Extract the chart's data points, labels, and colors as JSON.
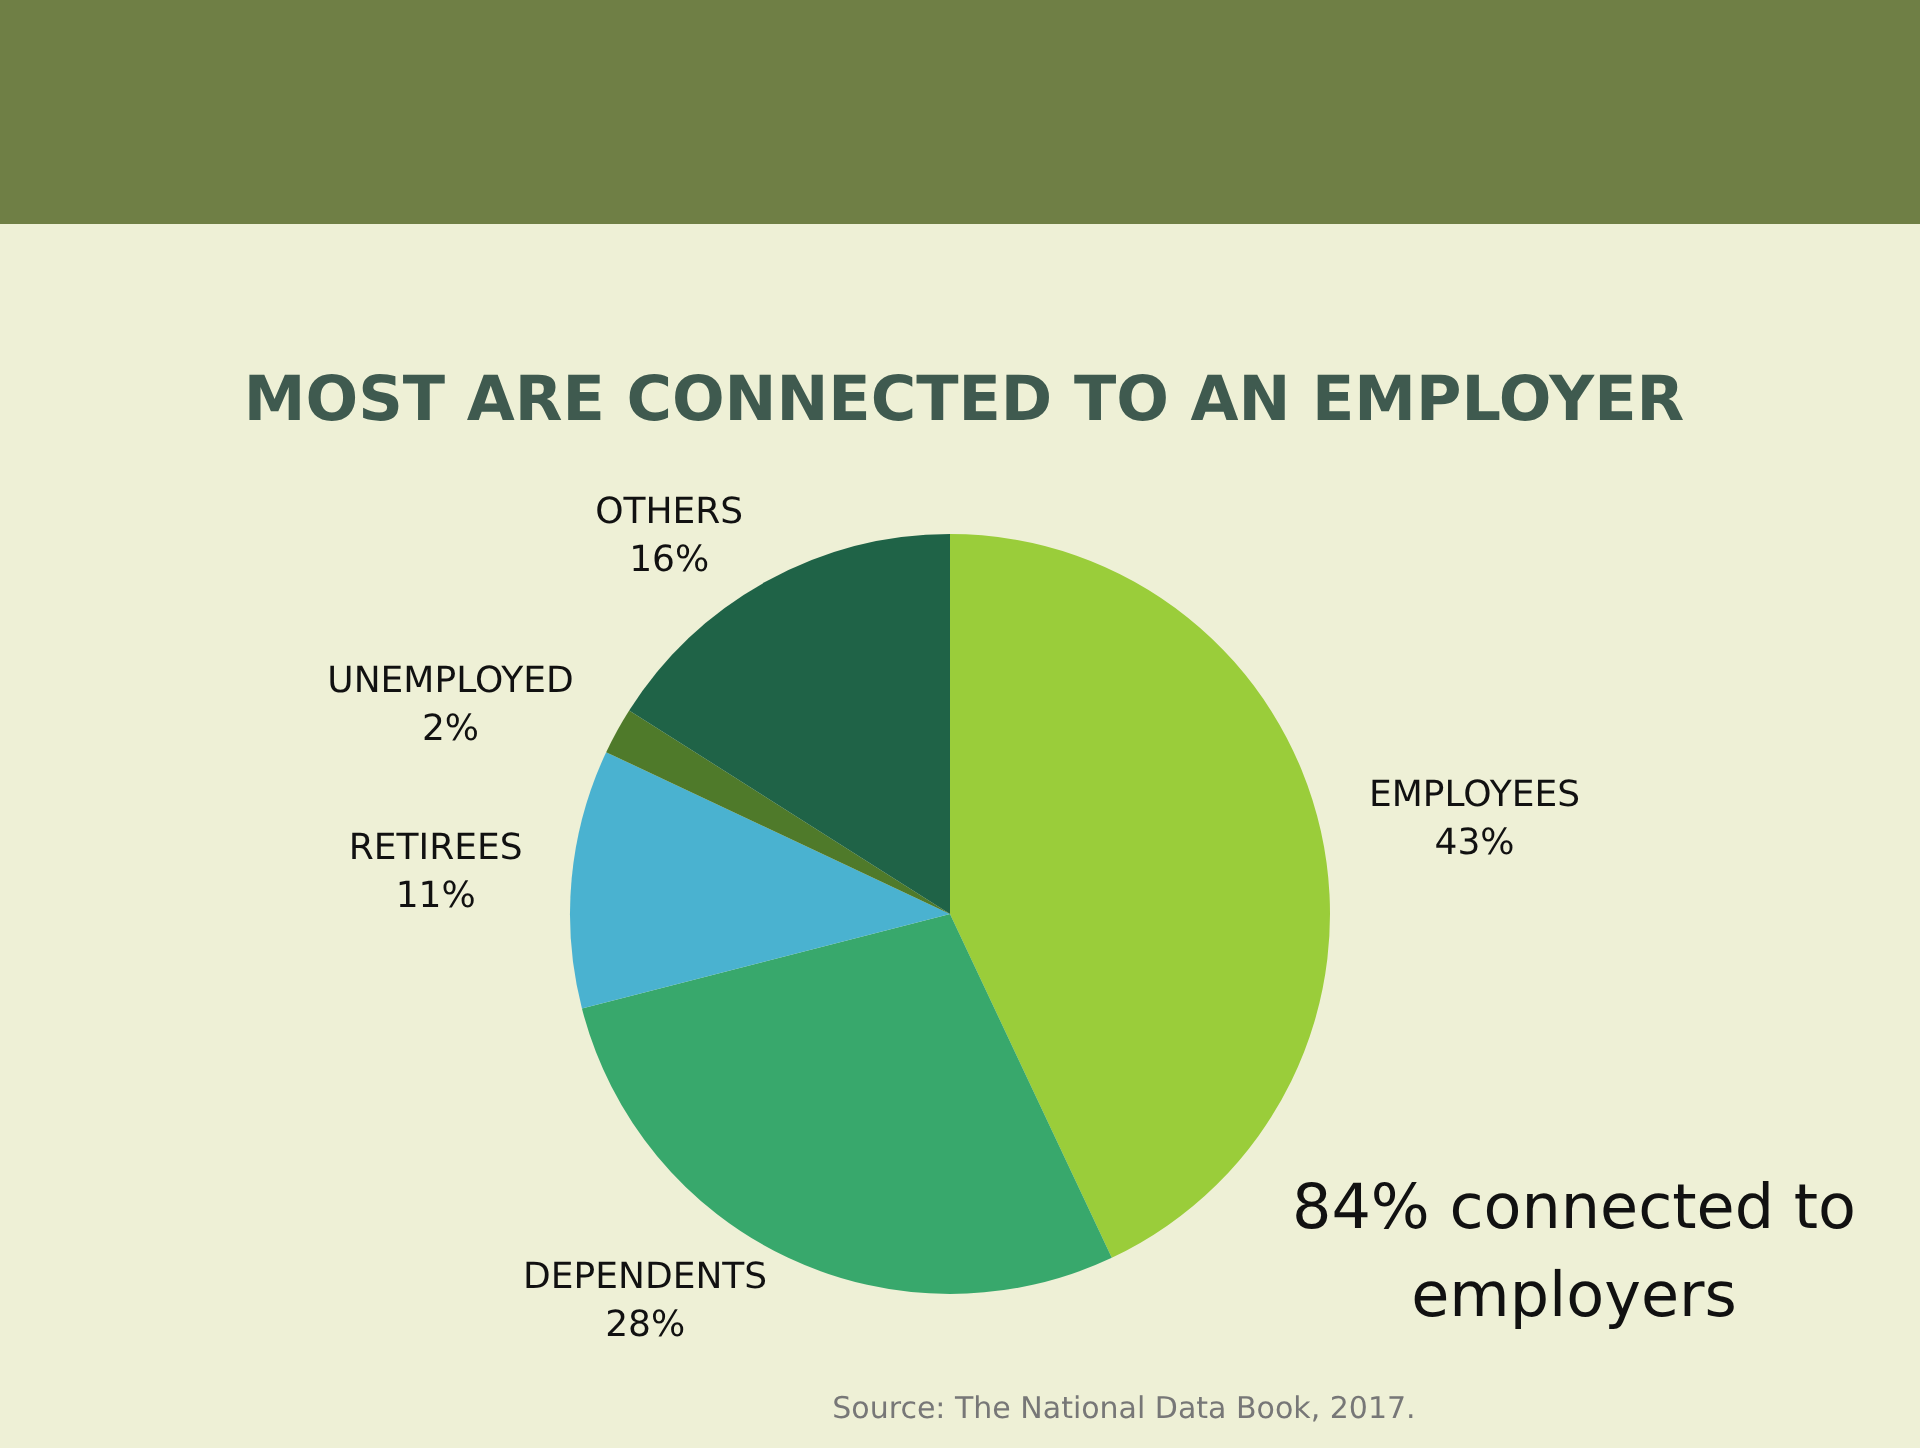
{
  "chart_data": {
    "type": "pie",
    "title": "MOST ARE CONNECTED TO AN EMPLOYER",
    "categories": [
      "EMPLOYEES",
      "DEPENDENTS",
      "RETIREES",
      "UNEMPLOYED",
      "OTHERS"
    ],
    "values": [
      43,
      28,
      11,
      2,
      16
    ],
    "colors": [
      "#9acd3a",
      "#38a86c",
      "#4ab2d0",
      "#4f7a2a",
      "#1f6347"
    ],
    "value_labels": [
      "43%",
      "28%",
      "11%",
      "2%",
      "16%"
    ],
    "annotations": [
      "84% connected to employers",
      "Source: The National Data Book, 2017."
    ],
    "legend": false
  }
}
